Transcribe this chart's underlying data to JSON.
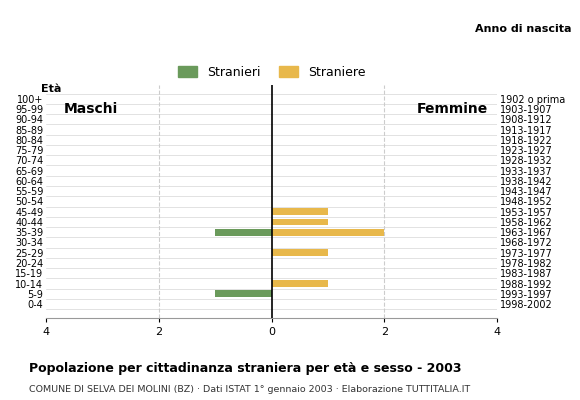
{
  "age_groups": [
    "100+",
    "95-99",
    "90-94",
    "85-89",
    "80-84",
    "75-79",
    "70-74",
    "65-69",
    "60-64",
    "55-59",
    "50-54",
    "45-49",
    "40-44",
    "35-39",
    "30-34",
    "25-29",
    "20-24",
    "15-19",
    "10-14",
    "5-9",
    "0-4"
  ],
  "birth_years": [
    "1902 o prima",
    "1903-1907",
    "1908-1912",
    "1913-1917",
    "1918-1922",
    "1923-1927",
    "1928-1932",
    "1933-1937",
    "1938-1942",
    "1943-1947",
    "1948-1952",
    "1953-1957",
    "1958-1962",
    "1963-1967",
    "1968-1972",
    "1973-1977",
    "1978-1982",
    "1983-1987",
    "1988-1992",
    "1993-1997",
    "1998-2002"
  ],
  "males": [
    0,
    0,
    0,
    0,
    0,
    0,
    0,
    0,
    0,
    0,
    0,
    0,
    0,
    1,
    0,
    0,
    0,
    0,
    0,
    1,
    0
  ],
  "females": [
    0,
    0,
    0,
    0,
    0,
    0,
    0,
    0,
    0,
    0,
    0,
    1,
    1,
    2,
    0,
    1,
    0,
    0,
    1,
    0,
    0
  ],
  "male_color": "#6a9a5b",
  "female_color": "#e8b84b",
  "background_color": "#ffffff",
  "grid_color": "#cccccc",
  "title": "Popolazione per cittadinanza straniera per età e sesso - 2003",
  "subtitle": "COMUNE DI SELVA DEI MOLINI (BZ) · Dati ISTAT 1° gennaio 2003 · Elaborazione TUTTITALIA.IT",
  "legend_male": "Stranieri",
  "legend_female": "Straniere",
  "label_males": "Maschi",
  "label_females": "Femmine",
  "label_eta": "Età",
  "label_birth": "Anno di nascita",
  "xlim": 4,
  "bar_height": 0.65
}
